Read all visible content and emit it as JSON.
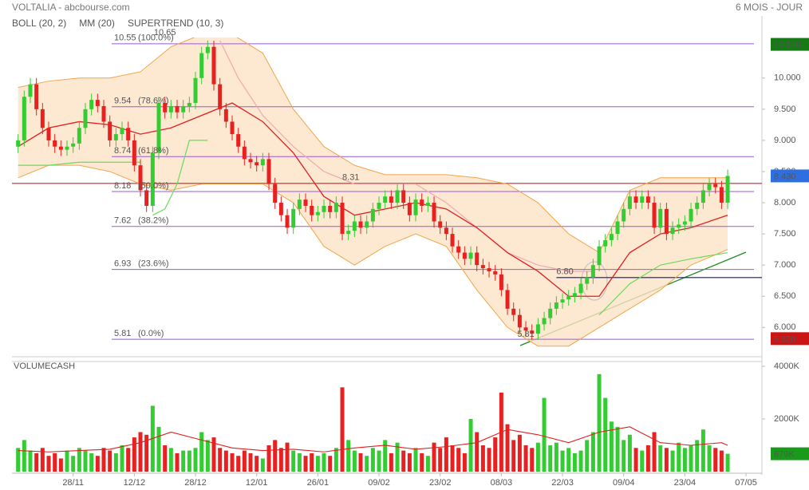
{
  "chart_data": [
    {
      "type": "candlestick",
      "title": "VOLTALIA - abcbourse.com",
      "subtitle": "6 MOIS - JOUR",
      "xlim": [
        -1,
        121.6
      ],
      "xticks": [
        {
          "value": 9,
          "label": "28/11"
        },
        {
          "value": 19,
          "label": "12/12"
        },
        {
          "value": 29,
          "label": "28/12"
        },
        {
          "value": 39,
          "label": "12/01"
        },
        {
          "value": 49,
          "label": "26/01"
        },
        {
          "value": 59,
          "label": "09/02"
        },
        {
          "value": 69,
          "label": "23/02"
        },
        {
          "value": 79,
          "label": "08/03"
        },
        {
          "value": 89,
          "label": "22/03"
        },
        {
          "value": 99,
          "label": "09/04"
        },
        {
          "value": 109,
          "label": "23/04"
        },
        {
          "value": 119,
          "label": "07/05"
        }
      ],
      "ylim": [
        5.53,
        10.65
      ],
      "yticks": [
        {
          "value": 6,
          "label": "6.000"
        },
        {
          "value": 6.5,
          "label": "6.500"
        },
        {
          "value": 7,
          "label": "7.000"
        },
        {
          "value": 7.5,
          "label": "7.500"
        },
        {
          "value": 8,
          "label": "8.000"
        },
        {
          "value": 8.5,
          "label": "8.500"
        },
        {
          "value": 9,
          "label": "9.000"
        },
        {
          "value": 9.5,
          "label": "9.500"
        },
        {
          "value": 10,
          "label": "10.000"
        }
      ],
      "up_color": "#33cc33",
      "down_color": "#e82020",
      "open": [
        8.9,
        9.0,
        9.7,
        9.9,
        9.5,
        9.2,
        9.0,
        8.9,
        8.85,
        8.9,
        8.95,
        9.2,
        9.5,
        9.65,
        9.55,
        9.3,
        9.0,
        9.1,
        9.2,
        9.0,
        8.6,
        8.2,
        7.95,
        8.8,
        9.6,
        9.45,
        9.55,
        9.45,
        9.55,
        9.6,
        10.0,
        10.4,
        10.5,
        9.9,
        9.5,
        9.3,
        9.1,
        8.9,
        8.7,
        8.65,
        8.6,
        8.7,
        8.3,
        8.0,
        7.8,
        7.6,
        7.9,
        8.05,
        7.95,
        7.8,
        7.85,
        7.95,
        7.85,
        8.0,
        7.5,
        7.55,
        7.7,
        7.6,
        7.7,
        7.9,
        8.0,
        8.1,
        8.0,
        8.2,
        8.0,
        7.8,
        8.05,
        7.95,
        8.0,
        7.7,
        7.6,
        7.5,
        7.3,
        7.2,
        7.1,
        7.2,
        7.0,
        6.95,
        6.9,
        6.85,
        6.6,
        6.3,
        6.2,
        6.0,
        5.95,
        5.9,
        6.05,
        6.15,
        6.3,
        6.4,
        6.45,
        6.5,
        6.55,
        6.7,
        6.8,
        7.0,
        7.3,
        7.4,
        7.5,
        7.7,
        7.9,
        8.1,
        8.0,
        8.1,
        8.0,
        7.6,
        7.9,
        7.5,
        7.6,
        7.65,
        7.7,
        7.9,
        8.0,
        8.2,
        8.3,
        8.25,
        8.0
      ],
      "high": [
        9.1,
        9.8,
        10.0,
        10.0,
        9.6,
        9.3,
        9.1,
        9.0,
        9.0,
        9.05,
        9.3,
        9.6,
        9.75,
        9.75,
        9.65,
        9.4,
        9.2,
        9.3,
        9.3,
        9.1,
        8.7,
        8.3,
        8.9,
        9.7,
        9.7,
        9.65,
        9.65,
        9.65,
        9.7,
        10.1,
        10.5,
        10.6,
        10.6,
        10.0,
        9.6,
        9.4,
        9.2,
        9.0,
        8.8,
        8.75,
        8.8,
        8.8,
        8.4,
        8.1,
        7.9,
        8.0,
        8.15,
        8.15,
        8.05,
        7.95,
        8.05,
        8.05,
        8.1,
        8.1,
        7.65,
        7.8,
        7.8,
        7.8,
        8.0,
        8.1,
        8.2,
        8.2,
        8.3,
        8.3,
        8.1,
        8.15,
        8.15,
        8.1,
        8.1,
        7.8,
        7.7,
        7.6,
        7.4,
        7.3,
        7.3,
        7.3,
        7.1,
        7.05,
        7.0,
        6.95,
        6.7,
        6.4,
        6.3,
        6.1,
        6.05,
        6.15,
        6.25,
        6.4,
        6.5,
        6.55,
        6.6,
        6.65,
        6.8,
        6.9,
        7.1,
        7.4,
        7.5,
        7.6,
        7.8,
        8.0,
        8.2,
        8.2,
        8.2,
        8.2,
        8.1,
        8.0,
        8.0,
        7.7,
        7.75,
        7.8,
        8.0,
        8.1,
        8.3,
        8.4,
        8.4,
        8.35,
        8.53
      ],
      "low": [
        8.8,
        8.9,
        9.6,
        9.4,
        9.1,
        8.9,
        8.8,
        8.75,
        8.75,
        8.8,
        8.85,
        9.1,
        9.4,
        9.45,
        9.2,
        8.9,
        8.9,
        9.0,
        8.9,
        8.5,
        8.1,
        7.85,
        7.85,
        8.7,
        9.35,
        9.35,
        9.35,
        9.35,
        9.45,
        9.5,
        9.9,
        10.3,
        9.8,
        9.4,
        9.2,
        9.0,
        8.8,
        8.6,
        8.55,
        8.5,
        8.5,
        8.2,
        7.9,
        7.7,
        7.5,
        7.5,
        7.8,
        7.85,
        7.7,
        7.7,
        7.75,
        7.75,
        7.75,
        7.4,
        7.4,
        7.45,
        7.5,
        7.5,
        7.6,
        7.8,
        7.9,
        7.9,
        7.9,
        7.9,
        7.7,
        7.7,
        7.85,
        7.85,
        7.6,
        7.5,
        7.4,
        7.2,
        7.1,
        7.0,
        7.0,
        6.9,
        6.85,
        6.8,
        6.75,
        6.5,
        6.2,
        6.1,
        5.9,
        5.85,
        5.8,
        5.8,
        5.95,
        6.05,
        6.2,
        6.3,
        6.35,
        6.4,
        6.45,
        6.6,
        6.7,
        6.9,
        7.2,
        7.3,
        7.4,
        7.6,
        7.8,
        7.9,
        7.9,
        7.9,
        7.5,
        7.5,
        7.4,
        7.4,
        7.5,
        7.55,
        7.6,
        7.8,
        7.9,
        8.1,
        8.15,
        7.9,
        7.9
      ],
      "close": [
        9.0,
        9.7,
        9.9,
        9.5,
        9.2,
        9.0,
        8.9,
        8.85,
        8.9,
        8.95,
        9.2,
        9.5,
        9.65,
        9.55,
        9.3,
        9.0,
        9.1,
        9.2,
        9.0,
        8.6,
        8.2,
        7.95,
        8.8,
        9.6,
        9.45,
        9.55,
        9.45,
        9.55,
        9.6,
        10.0,
        10.4,
        10.5,
        9.9,
        9.5,
        9.3,
        9.1,
        8.9,
        8.7,
        8.65,
        8.6,
        8.7,
        8.3,
        8.0,
        7.8,
        7.6,
        7.9,
        8.05,
        7.95,
        7.8,
        7.85,
        7.95,
        7.85,
        8.0,
        7.5,
        7.55,
        7.7,
        7.6,
        7.7,
        7.9,
        8.0,
        8.1,
        8.0,
        8.2,
        8.0,
        7.8,
        8.05,
        7.95,
        8.0,
        7.7,
        7.6,
        7.5,
        7.3,
        7.2,
        7.1,
        7.2,
        7.0,
        6.95,
        6.9,
        6.85,
        6.6,
        6.3,
        6.2,
        6.0,
        5.95,
        5.9,
        6.05,
        6.15,
        6.3,
        6.4,
        6.45,
        6.5,
        6.55,
        6.7,
        6.8,
        7.0,
        7.3,
        7.4,
        7.5,
        7.7,
        7.9,
        8.1,
        8.0,
        8.1,
        8.0,
        7.6,
        7.9,
        7.5,
        7.6,
        7.65,
        7.7,
        7.9,
        8.0,
        8.2,
        8.3,
        8.25,
        8.0,
        8.43
      ],
      "bollinger": {
        "name": "BOLL (20, 2)",
        "color": "#f2a54a",
        "fill": "#fde3c6",
        "x": [
          0,
          5,
          10,
          15,
          20,
          25,
          30,
          35,
          40,
          45,
          50,
          55,
          60,
          65,
          70,
          75,
          80,
          85,
          90,
          95,
          100,
          105,
          110,
          116
        ],
        "upper": [
          9.85,
          9.95,
          10.0,
          10.0,
          10.1,
          10.5,
          10.7,
          10.7,
          10.4,
          9.5,
          8.9,
          8.6,
          8.45,
          8.45,
          8.45,
          8.4,
          8.3,
          8.0,
          7.5,
          7.2,
          8.2,
          8.4,
          8.4,
          8.4
        ],
        "lower": [
          8.4,
          8.6,
          8.6,
          8.5,
          8.3,
          8.2,
          8.3,
          8.3,
          8.3,
          8.0,
          7.3,
          7.0,
          7.3,
          7.5,
          7.3,
          6.6,
          6.0,
          5.7,
          5.7,
          6.0,
          6.3,
          6.6,
          7.0,
          7.25
        ]
      },
      "moving_average": {
        "name": "MM (20)",
        "color": "#e02020",
        "x": [
          0,
          5,
          10,
          15,
          20,
          25,
          30,
          35,
          40,
          45,
          50,
          55,
          60,
          65,
          70,
          75,
          80,
          85,
          90,
          95,
          100,
          105,
          110,
          116
        ],
        "values": [
          8.9,
          9.2,
          9.3,
          9.25,
          9.1,
          9.2,
          9.4,
          9.6,
          9.3,
          8.8,
          8.1,
          7.8,
          7.9,
          8.0,
          7.9,
          7.6,
          7.2,
          6.9,
          6.5,
          6.5,
          7.2,
          7.5,
          7.6,
          7.8
        ]
      },
      "supertrend": {
        "name": "SUPERTREND (10, 3)",
        "color": "#f4a7b0",
        "up_color": "#6ada5a",
        "x": [
          0,
          5,
          10,
          15,
          20,
          21,
          22,
          24,
          26,
          28,
          31,
          33,
          36,
          40,
          45,
          50,
          55,
          60,
          65,
          70,
          75,
          80,
          85,
          90,
          94,
          95,
          100,
          105,
          110,
          116
        ],
        "values": [
          null,
          null,
          null,
          null,
          null,
          null,
          null,
          null,
          null,
          null,
          null,
          10.6,
          10.0,
          9.4,
          8.9,
          8.5,
          8.3,
          8.3,
          8.3,
          8.0,
          7.6,
          7.2,
          7.0,
          6.9,
          6.9,
          null,
          null,
          null,
          null,
          null
        ],
        "up_values": [
          8.6,
          8.6,
          8.65,
          8.65,
          8.65,
          null,
          7.8,
          7.9,
          8.3,
          9.0,
          9.0,
          null,
          null,
          null,
          null,
          null,
          null,
          null,
          null,
          null,
          null,
          null,
          null,
          null,
          null,
          6.2,
          6.7,
          7.0,
          7.1,
          7.2
        ]
      },
      "fibonacci": {
        "color": "#9b59d9",
        "levels": [
          10.55,
          9.54,
          8.74,
          8.18,
          7.62,
          6.93,
          5.81
        ],
        "labels": [
          "(100.0%)",
          "(78.6%)",
          "(61.8%)",
          "(50.0%)",
          "(38.2%)",
          "(23.6%)",
          "(0.0%)"
        ]
      },
      "lines": [
        {
          "value": 8.31,
          "label": "8.31",
          "x": 53,
          "color": "#d42020"
        },
        {
          "value": 6.8,
          "label": "6.80",
          "x": 88,
          "color": "#16167a"
        }
      ],
      "annotations": [
        {
          "value": 10.65,
          "label": "10.65",
          "x": 24,
          "color": "#8a2a2a"
        },
        {
          "value": 5.81,
          "label": "5.81",
          "x": 83,
          "color": "#1a7a1a"
        }
      ],
      "badges": [
        {
          "value": 10.54,
          "label": "10.540",
          "color": "#157a15"
        },
        {
          "value": 8.43,
          "label": "8.430",
          "color": "#2d6fe0"
        },
        {
          "value": 5.82,
          "label": "5.820",
          "color": "#cc1414"
        }
      ]
    },
    {
      "type": "bar",
      "title": "VOLUMECASH",
      "ylim": [
        0,
        4180
      ],
      "yticks": [
        {
          "value": 2000,
          "label": "2000K"
        },
        {
          "value": 4000,
          "label": "4000K"
        }
      ],
      "values": [
        900,
        1200,
        800,
        700,
        900,
        600,
        700,
        500,
        800,
        600,
        900,
        800,
        700,
        600,
        900,
        800,
        700,
        1000,
        900,
        1300,
        1500,
        1400,
        2500,
        1700,
        1000,
        900,
        700,
        800,
        800,
        900,
        1500,
        1200,
        1300,
        900,
        800,
        700,
        600,
        800,
        700,
        600,
        500,
        1000,
        1200,
        900,
        1100,
        800,
        700,
        600,
        700,
        600,
        700,
        600,
        900,
        3200,
        1200,
        800,
        700,
        600,
        900,
        800,
        1200,
        700,
        1100,
        800,
        700,
        900,
        700,
        600,
        1100,
        900,
        1300,
        1000,
        900,
        700,
        2000,
        1500,
        1000,
        900,
        1300,
        3000,
        1800,
        1200,
        1400,
        1000,
        900,
        1100,
        2800,
        1000,
        1100,
        800,
        900,
        700,
        800,
        1200,
        1500,
        3700,
        2800,
        1900,
        1700,
        1200,
        1400,
        900,
        800,
        1000,
        1500,
        1000,
        900,
        800,
        1100,
        900,
        1000,
        1200,
        1600,
        1000,
        900,
        800,
        679
      ],
      "average": {
        "color": "#e02020",
        "x": [
          0,
          5,
          10,
          15,
          20,
          25,
          30,
          35,
          40,
          45,
          50,
          55,
          60,
          65,
          70,
          75,
          80,
          85,
          90,
          95,
          100,
          105,
          110,
          115,
          116
        ],
        "values": [
          800,
          750,
          800,
          850,
          1100,
          1500,
          1200,
          900,
          800,
          850,
          750,
          900,
          1000,
          850,
          950,
          1100,
          1600,
          1400,
          1100,
          1500,
          1700,
          1100,
          1000,
          1100,
          1000
        ]
      },
      "badge": {
        "value": 679,
        "label": "679K",
        "color": "#1a9a1a"
      }
    }
  ]
}
